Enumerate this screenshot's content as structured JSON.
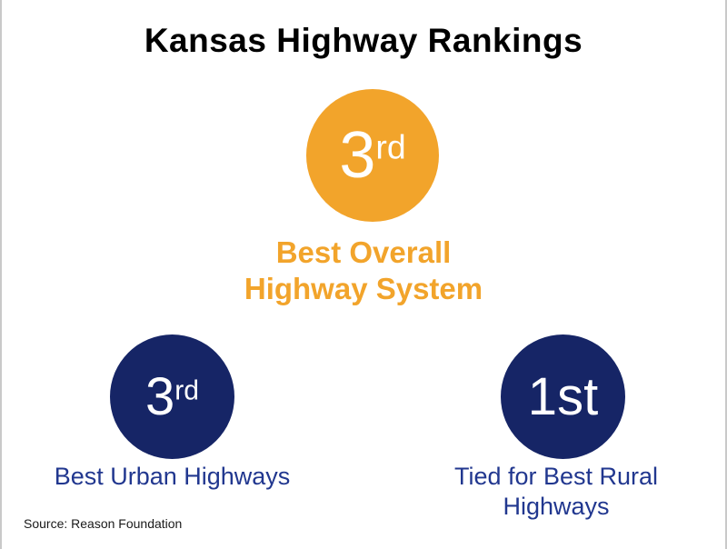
{
  "title": "Kansas Highway Rankings",
  "badges": {
    "overall": {
      "rank": "3",
      "suffix": "rd",
      "label_line1": "Best Overall",
      "label_line2": "Highway System"
    },
    "urban": {
      "rank": "3",
      "suffix": "rd",
      "label": "Best Urban Highways"
    },
    "rural": {
      "rank": "1",
      "suffix": "st",
      "label_line1": "Tied for Best Rural",
      "label_line2": "Highways"
    }
  },
  "source": "Source: Reason Foundation",
  "colors": {
    "orange": "#F2A42B",
    "navy": "#162566",
    "navy-text": "#21378F",
    "border": "#C9C9C9"
  }
}
